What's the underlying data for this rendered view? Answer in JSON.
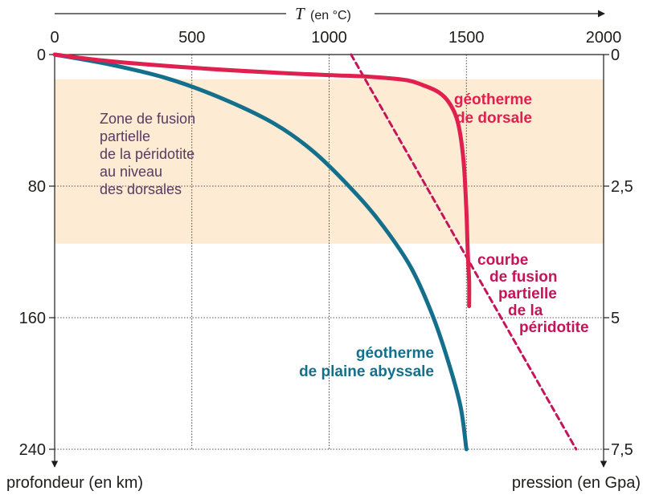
{
  "chart_data": {
    "type": "line",
    "x_axis": {
      "title_symbol": "T",
      "title_unit": "(en °C)",
      "ticks": [
        0,
        500,
        1000,
        1500,
        2000
      ],
      "tick_labels": [
        "0",
        "500",
        "1000",
        "1500",
        "2000"
      ],
      "range": [
        0,
        2000
      ],
      "position": "top"
    },
    "y_left_axis": {
      "label": "profondeur (en km)",
      "ticks": [
        0,
        80,
        160,
        240
      ],
      "tick_labels": [
        "0",
        "80",
        "160",
        "240"
      ],
      "range": [
        0,
        240
      ],
      "inverted": true
    },
    "y_right_axis": {
      "label": "pression (en Gpa)",
      "ticks": [
        0,
        2.5,
        5,
        7.5
      ],
      "tick_labels": [
        "0",
        "2,5",
        "5",
        "7,5"
      ],
      "range": [
        0,
        7.5
      ]
    },
    "grid": true,
    "shaded_zone": {
      "depth_range": [
        15,
        115
      ],
      "color": "#fdebd3",
      "label_lines": [
        "Zone de fusion",
        "partielle",
        "de la péridotite",
        "au niveau",
        "des dorsales"
      ]
    },
    "series": [
      {
        "name_lines": [
          "géotherme",
          "de dorsale"
        ],
        "color": "#e0204f",
        "style": "solid",
        "points": [
          [
            0,
            0
          ],
          [
            200,
            4
          ],
          [
            500,
            8
          ],
          [
            800,
            11
          ],
          [
            1000,
            12.5
          ],
          [
            1150,
            13.5
          ],
          [
            1280,
            15.5
          ],
          [
            1340,
            18.5
          ],
          [
            1400,
            23
          ],
          [
            1440,
            30
          ],
          [
            1470,
            42
          ],
          [
            1490,
            65
          ],
          [
            1500,
            95
          ],
          [
            1505,
            120
          ],
          [
            1510,
            138
          ],
          [
            1510,
            153
          ]
        ]
      },
      {
        "name_lines": [
          "courbe",
          "de fusion",
          "partielle",
          "de la",
          "péridotite"
        ],
        "color": "#c4145a",
        "style": "dashed",
        "points": [
          [
            1080,
            0
          ],
          [
            1900,
            240
          ]
        ]
      },
      {
        "name_lines": [
          "géotherme",
          "de plaine abyssale"
        ],
        "color": "#146f8c",
        "style": "solid",
        "points": [
          [
            0,
            0
          ],
          [
            200,
            6
          ],
          [
            400,
            14
          ],
          [
            600,
            26
          ],
          [
            800,
            42
          ],
          [
            950,
            60
          ],
          [
            1100,
            85
          ],
          [
            1200,
            105
          ],
          [
            1300,
            130
          ],
          [
            1380,
            160
          ],
          [
            1440,
            190
          ],
          [
            1480,
            215
          ],
          [
            1500,
            240
          ]
        ]
      }
    ]
  }
}
